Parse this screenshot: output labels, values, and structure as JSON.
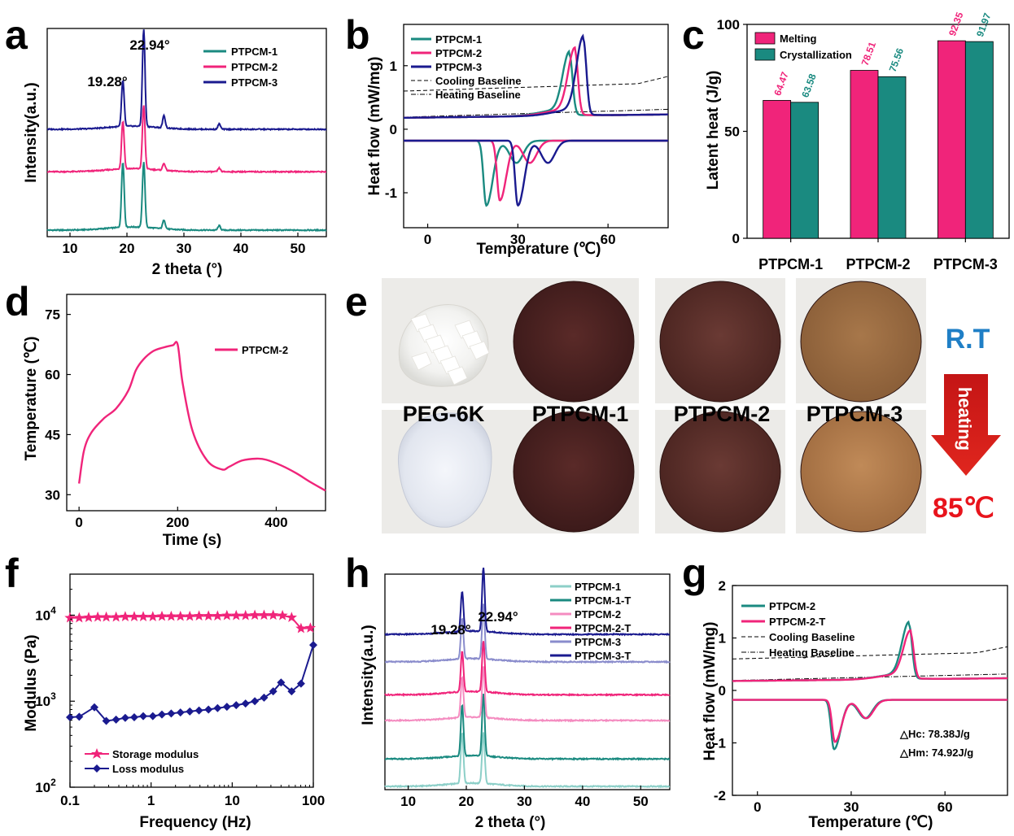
{
  "figure": {
    "panel_letters": [
      "a",
      "b",
      "c",
      "d",
      "e",
      "f",
      "h",
      "g"
    ]
  },
  "colors": {
    "teal": "#1a8a80",
    "pink": "#f0247a",
    "navy": "#1a1a8f",
    "light_teal": "#8ccfc8",
    "light_pink": "#f48cc0",
    "lavender": "#8a8ccc"
  },
  "chart_data": [
    {
      "id": "a",
      "type": "line",
      "xlabel": "2 theta (°)",
      "ylabel": "Intensity(a.u.)",
      "xlim": [
        6,
        55
      ],
      "xticks": [
        10,
        20,
        30,
        40,
        50
      ],
      "series": [
        {
          "name": "PTPCM-1",
          "color": "#1a8a80",
          "offset": 0.0,
          "peaks": [
            {
              "x": 19.28,
              "h": 0.37
            },
            {
              "x": 22.94,
              "h": 0.37
            },
            {
              "x": 26.5,
              "h": 0.05
            },
            {
              "x": 36.2,
              "h": 0.025
            }
          ]
        },
        {
          "name": "PTPCM-2",
          "color": "#f0247a",
          "offset": 0.33,
          "peaks": [
            {
              "x": 19.28,
              "h": 0.27
            },
            {
              "x": 22.94,
              "h": 0.36
            },
            {
              "x": 26.5,
              "h": 0.04
            },
            {
              "x": 36.2,
              "h": 0.02
            }
          ]
        },
        {
          "name": "PTPCM-3",
          "color": "#1a1a8f",
          "offset": 0.57,
          "peaks": [
            {
              "x": 19.28,
              "h": 0.26
            },
            {
              "x": 22.94,
              "h": 0.55
            },
            {
              "x": 26.5,
              "h": 0.07
            },
            {
              "x": 36.2,
              "h": 0.03
            }
          ]
        }
      ],
      "annotations": [
        "19.28°",
        "22.94°"
      ]
    },
    {
      "id": "b",
      "type": "line",
      "xlabel": "Temperature (℃)",
      "ylabel": "Heat flow (mW/mg)",
      "xlim": [
        -8,
        80
      ],
      "ylim": [
        -1.55,
        1.65
      ],
      "xticks": [
        0,
        30,
        60
      ],
      "yticks": [
        -1,
        0,
        1
      ],
      "legend": [
        "PTPCM-1",
        "PTPCM-2",
        "PTPCM-3",
        "Cooling Baseline",
        "Heating Baseline"
      ],
      "heating": [
        {
          "name": "PTPCM-1",
          "peak_x": 47.2,
          "peak_y": 1.14
        },
        {
          "name": "PTPCM-2",
          "peak_x": 49.0,
          "peak_y": 1.2
        },
        {
          "name": "PTPCM-3",
          "peak_x": 51.8,
          "peak_y": 1.38
        }
      ],
      "cooling": [
        {
          "name": "PTPCM-1",
          "peak_x": 19.5,
          "peak_y": -1.2
        },
        {
          "name": "PTPCM-2",
          "peak_x": 24.0,
          "peak_y": -1.12
        },
        {
          "name": "PTPCM-3",
          "peak_x": 30.0,
          "peak_y": -1.2
        }
      ]
    },
    {
      "id": "c",
      "type": "bar",
      "ylabel": "Latent heat (J/g)",
      "ylim": [
        0,
        100
      ],
      "yticks": [
        0,
        50,
        100
      ],
      "categories": [
        "PTPCM-1",
        "PTPCM-2",
        "PTPCM-3"
      ],
      "series": [
        {
          "name": "Melting",
          "color": "#f0247a",
          "values": [
            64.47,
            78.51,
            92.35
          ]
        },
        {
          "name": "Crystallization",
          "color": "#1a8a80",
          "values": [
            63.58,
            75.56,
            91.97
          ]
        }
      ],
      "value_labels": [
        [
          "64.47",
          "78.51",
          "92.35"
        ],
        [
          "63.58",
          "75.56",
          "91.97"
        ]
      ]
    },
    {
      "id": "d",
      "type": "line",
      "xlabel": "Time (s)",
      "ylabel": "Temperature (℃)",
      "xlim": [
        -25,
        500
      ],
      "ylim": [
        26,
        80
      ],
      "xticks": [
        0,
        200,
        400
      ],
      "yticks": [
        30,
        45,
        60,
        75
      ],
      "series": [
        {
          "name": "PTPCM-2",
          "color": "#f0247a",
          "x": [
            0,
            10,
            25,
            50,
            75,
            100,
            115,
            130,
            150,
            170,
            190,
            200,
            210,
            230,
            260,
            290,
            305,
            330,
            360,
            380,
            410,
            440,
            470,
            500
          ],
          "y": [
            32.8,
            41,
            45.5,
            49,
            51.5,
            56,
            61,
            63.7,
            65.8,
            66.7,
            67.3,
            67.5,
            58,
            46,
            38.5,
            36.3,
            37,
            38.5,
            39,
            38.7,
            37.3,
            35.4,
            33.1,
            31
          ]
        }
      ]
    },
    {
      "id": "f",
      "type": "line",
      "xlabel": "Frequency (Hz)",
      "ylabel": "Modulus (Pa)",
      "xscale": "log",
      "yscale": "log",
      "xlim": [
        0.1,
        100
      ],
      "ylim": [
        100,
        30000
      ],
      "xticks": [
        "0.1",
        "1",
        "10",
        "100"
      ],
      "yticks": [
        "10²",
        "10³",
        "10⁴"
      ],
      "series": [
        {
          "name": "Storage modulus",
          "color": "#f0247a",
          "marker": "star",
          "x": [
            0.1,
            0.13,
            0.17,
            0.22,
            0.28,
            0.37,
            0.48,
            0.62,
            0.8,
            1.05,
            1.36,
            1.77,
            2.3,
            3.0,
            3.9,
            5.1,
            6.6,
            8.6,
            11.2,
            14.6,
            19,
            24.7,
            32,
            41.7,
            54,
            70.5,
            92
          ],
          "y": [
            9300,
            9300,
            9400,
            9500,
            9500,
            9500,
            9600,
            9600,
            9600,
            9600,
            9700,
            9700,
            9700,
            9700,
            9800,
            9800,
            9800,
            9900,
            9900,
            9900,
            10000,
            10000,
            10000,
            9900,
            9400,
            7000,
            7100
          ]
        },
        {
          "name": "Loss modulus",
          "color": "#1a1a8f",
          "marker": "diamond",
          "x": [
            0.1,
            0.13,
            0.2,
            0.28,
            0.37,
            0.48,
            0.62,
            0.8,
            1.05,
            1.36,
            1.77,
            2.3,
            3.0,
            3.9,
            5.1,
            6.6,
            8.6,
            11.2,
            14.6,
            19,
            24.7,
            32,
            40,
            54,
            70.5,
            100
          ],
          "y": [
            650,
            660,
            850,
            590,
            610,
            640,
            650,
            670,
            670,
            700,
            720,
            740,
            760,
            780,
            800,
            830,
            860,
            900,
            940,
            1000,
            1100,
            1300,
            1650,
            1300,
            1600,
            4500
          ]
        }
      ]
    },
    {
      "id": "h",
      "type": "line",
      "xlabel": "2 theta (°)",
      "ylabel": "Intensity(a.u.)",
      "xlim": [
        6,
        55
      ],
      "xticks": [
        10,
        20,
        30,
        40,
        50
      ],
      "series": [
        {
          "name": "PTPCM-1",
          "color": "#8ccfc8",
          "offset": 0.0,
          "peaks": [
            {
              "x": 19.28,
              "h": 0.28
            },
            {
              "x": 22.94,
              "h": 0.28
            }
          ]
        },
        {
          "name": "PTPCM-1-T",
          "color": "#1a8a80",
          "offset": 0.15,
          "peaks": [
            {
              "x": 19.28,
              "h": 0.28
            },
            {
              "x": 22.94,
              "h": 0.34
            }
          ]
        },
        {
          "name": "PTPCM-2",
          "color": "#f48cc0",
          "offset": 0.36,
          "peaks": [
            {
              "x": 19.28,
              "h": 0.22
            },
            {
              "x": 22.94,
              "h": 0.28
            }
          ]
        },
        {
          "name": "PTPCM-2-T",
          "color": "#f0247a",
          "offset": 0.5,
          "peaks": [
            {
              "x": 19.28,
              "h": 0.22
            },
            {
              "x": 22.94,
              "h": 0.28
            }
          ]
        },
        {
          "name": "PTPCM-3",
          "color": "#8a8ccc",
          "offset": 0.68,
          "peaks": [
            {
              "x": 19.28,
              "h": 0.22
            },
            {
              "x": 22.94,
              "h": 0.3
            }
          ]
        },
        {
          "name": "PTPCM-3-T",
          "color": "#1a1a8f",
          "offset": 0.83,
          "peaks": [
            {
              "x": 19.28,
              "h": 0.22
            },
            {
              "x": 22.94,
              "h": 0.35
            }
          ]
        }
      ],
      "annotations": [
        "19.28°",
        "22.94°"
      ]
    },
    {
      "id": "g",
      "type": "line",
      "xlabel": "Temperature (℃)",
      "ylabel": "Heat flow (mW/mg)",
      "xlim": [
        -8,
        80
      ],
      "ylim": [
        -2,
        2
      ],
      "xticks": [
        0,
        30,
        60
      ],
      "yticks": [
        -2,
        -1,
        0,
        1,
        2
      ],
      "legend": [
        "PTPCM-2",
        "PTPCM-2-T",
        "Cooling Baseline",
        "Heating Baseline"
      ],
      "heating": [
        {
          "name": "PTPCM-2",
          "peak_x": 48.5,
          "peak_y": 1.22
        },
        {
          "name": "PTPCM-2-T",
          "peak_x": 49.0,
          "peak_y": 1.06
        }
      ],
      "cooling": [
        {
          "name": "PTPCM-2",
          "peak_x": 24.5,
          "peak_y": -1.12
        },
        {
          "name": "PTPCM-2-T",
          "peak_x": 24.8,
          "peak_y": -0.98
        }
      ],
      "annotations": [
        "△Hc: 78.38J/g",
        "△Hm: 74.92J/g"
      ]
    }
  ],
  "panel_e": {
    "samples": [
      "PEG-6K",
      "PTPCM-1",
      "PTPCM-2",
      "PTPCM-3"
    ],
    "top_label": "R.T",
    "arrow_label": "heating",
    "bottom_label": "85℃",
    "top_label_color": "#1f7fc6",
    "bottom_label_color": "#e8141c"
  },
  "text": {
    "a": {
      "letter": "a",
      "ylabel": "Intensity(a.u.)",
      "xlabel": "2 theta (°)",
      "ann1": "19.28°",
      "ann2": "22.94°",
      "leg1": "PTPCM-1",
      "leg2": "PTPCM-2",
      "leg3": "PTPCM-3",
      "xt": [
        "10",
        "20",
        "30",
        "40",
        "50"
      ]
    },
    "b": {
      "letter": "b",
      "ylabel": "Heat flow (mW/mg)",
      "xlabel": "Temperature (℃)",
      "leg1": "PTPCM-1",
      "leg2": "PTPCM-2",
      "leg3": "PTPCM-3",
      "leg4": "Cooling Baseline",
      "leg5": "Heating Baseline",
      "xt": [
        "0",
        "30",
        "60"
      ],
      "yt": [
        "1",
        "0",
        "-1"
      ]
    },
    "c": {
      "letter": "c",
      "ylabel": "Latent heat (J/g)",
      "leg1": "Melting",
      "leg2": "Crystallization",
      "yt": [
        "100",
        "50",
        "0"
      ],
      "cats": [
        "PTPCM-1",
        "PTPCM-2",
        "PTPCM-3"
      ],
      "v_m": [
        "64.47",
        "78.51",
        "92.35"
      ],
      "v_c": [
        "63.58",
        "75.56",
        "91.97"
      ]
    },
    "d": {
      "letter": "d",
      "ylabel": "Temperature (℃)",
      "xlabel": "Time (s)",
      "leg1": "PTPCM-2",
      "xt": [
        "0",
        "200",
        "400"
      ],
      "yt": [
        "75",
        "60",
        "45",
        "30"
      ]
    },
    "e": {
      "letter": "e"
    },
    "f": {
      "letter": "f",
      "ylabel": "Modulus (Pa)",
      "xlabel": "Frequency (Hz)",
      "leg1": "Storage modulus",
      "leg2": "Loss modulus",
      "xt": [
        "0.1",
        "1",
        "10",
        "100"
      ]
    },
    "h": {
      "letter": "h",
      "ylabel": "Intensity(a.u.)",
      "xlabel": "2 theta (°)",
      "ann1": "19.28°",
      "ann2": "22.94°",
      "leg": [
        "PTPCM-1",
        "PTPCM-1-T",
        "PTPCM-2",
        "PTPCM-2-T",
        "PTPCM-3",
        "PTPCM-3-T"
      ],
      "xt": [
        "10",
        "20",
        "30",
        "40",
        "50"
      ]
    },
    "g": {
      "letter": "g",
      "ylabel": "Heat flow (mW/mg)",
      "xlabel": "Temperature (℃)",
      "leg1": "PTPCM-2",
      "leg2": "PTPCM-2-T",
      "leg3": "Cooling Baseline",
      "leg4": "Heating Baseline",
      "hc": "△Hc: 78.38J/g",
      "hm": "△Hm: 74.92J/g",
      "xt": [
        "0",
        "30",
        "60"
      ],
      "yt": [
        "2",
        "1",
        "0",
        "-1",
        "-2"
      ]
    }
  }
}
